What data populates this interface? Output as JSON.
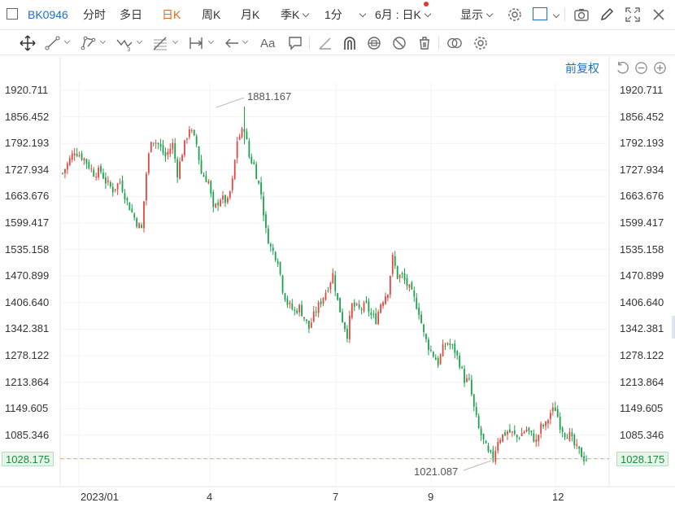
{
  "header": {
    "symbol": "BK0946",
    "periods": [
      "分时",
      "多日",
      "日K",
      "周K",
      "月K"
    ],
    "active_period": "日K",
    "season": "季K",
    "minute": "1分",
    "range": "6月 : 日K",
    "display": "显示"
  },
  "toolbar": {
    "tools": [
      "move-tool",
      "line-tool",
      "polyline-tool",
      "wave-tool",
      "fib-tool",
      "measure-tool",
      "arrow-tool",
      "text-tool",
      "note-tool",
      "ray-tool",
      "arc-tool",
      "magnet-tool",
      "hide-tool",
      "delete-tool",
      "compare-tool",
      "settings-tool"
    ],
    "text_tool_label": "Aa"
  },
  "chart_header": {
    "adjust_label": "前复权"
  },
  "chart_data": {
    "type": "candlestick",
    "symbol": "BK0946",
    "y_ticks": [
      "1920.711",
      "1856.452",
      "1792.193",
      "1727.934",
      "1663.676",
      "1599.417",
      "1535.158",
      "1470.899",
      "1406.640",
      "1342.381",
      "1278.122",
      "1213.864",
      "1149.605",
      "1085.346"
    ],
    "current_price": "1028.175",
    "ylim": [
      1000,
      1950
    ],
    "x_ticks": [
      "2023/01",
      "4",
      "7",
      "9",
      "12"
    ],
    "annotations": {
      "high": "1881.167",
      "low": "1021.087"
    },
    "close_path": [
      [
        0,
        1720
      ],
      [
        5,
        1775
      ],
      [
        9,
        1755
      ],
      [
        13,
        1720
      ],
      [
        16,
        1725
      ],
      [
        18,
        1700
      ],
      [
        21,
        1680
      ],
      [
        24,
        1700
      ],
      [
        27,
        1650
      ],
      [
        31,
        1600
      ],
      [
        33,
        1585
      ],
      [
        35,
        1720
      ],
      [
        37,
        1805
      ],
      [
        40,
        1790
      ],
      [
        43,
        1760
      ],
      [
        46,
        1790
      ],
      [
        48,
        1720
      ],
      [
        50,
        1770
      ],
      [
        53,
        1830
      ],
      [
        56,
        1790
      ],
      [
        58,
        1720
      ],
      [
        61,
        1700
      ],
      [
        63,
        1630
      ],
      [
        66,
        1660
      ],
      [
        69,
        1650
      ],
      [
        71,
        1700
      ],
      [
        73,
        1800
      ],
      [
        76,
        1830
      ],
      [
        78,
        1760
      ],
      [
        80,
        1740
      ],
      [
        83,
        1670
      ],
      [
        85,
        1580
      ],
      [
        87,
        1540
      ],
      [
        90,
        1510
      ],
      [
        92,
        1440
      ],
      [
        94,
        1405
      ],
      [
        97,
        1385
      ],
      [
        99,
        1395
      ],
      [
        101,
        1370
      ],
      [
        103,
        1345
      ],
      [
        105,
        1375
      ],
      [
        108,
        1410
      ],
      [
        111,
        1445
      ],
      [
        113,
        1475
      ],
      [
        115,
        1410
      ],
      [
        117,
        1365
      ],
      [
        119,
        1330
      ],
      [
        121,
        1400
      ],
      [
        124,
        1390
      ],
      [
        127,
        1400
      ],
      [
        129,
        1375
      ],
      [
        131,
        1365
      ],
      [
        133,
        1405
      ],
      [
        136,
        1435
      ],
      [
        138,
        1515
      ],
      [
        140,
        1470
      ],
      [
        142,
        1470
      ],
      [
        145,
        1440
      ],
      [
        147,
        1415
      ],
      [
        149,
        1385
      ],
      [
        151,
        1330
      ],
      [
        153,
        1300
      ],
      [
        155,
        1280
      ],
      [
        157,
        1260
      ],
      [
        159,
        1295
      ],
      [
        161,
        1310
      ],
      [
        164,
        1290
      ],
      [
        166,
        1260
      ],
      [
        168,
        1220
      ],
      [
        170,
        1215
      ],
      [
        172,
        1150
      ],
      [
        174,
        1100
      ],
      [
        176,
        1070
      ],
      [
        178,
        1040
      ],
      [
        180,
        1030
      ],
      [
        182,
        1075
      ],
      [
        184,
        1085
      ],
      [
        186,
        1095
      ],
      [
        188,
        1090
      ],
      [
        190,
        1080
      ],
      [
        192,
        1090
      ],
      [
        194,
        1100
      ],
      [
        196,
        1085
      ],
      [
        198,
        1070
      ],
      [
        200,
        1105
      ],
      [
        202,
        1110
      ],
      [
        204,
        1140
      ],
      [
        206,
        1150
      ],
      [
        208,
        1110
      ],
      [
        210,
        1090
      ],
      [
        212,
        1085
      ],
      [
        214,
        1060
      ],
      [
        216,
        1045
      ],
      [
        218,
        1030
      ],
      [
        219,
        1028
      ]
    ]
  }
}
